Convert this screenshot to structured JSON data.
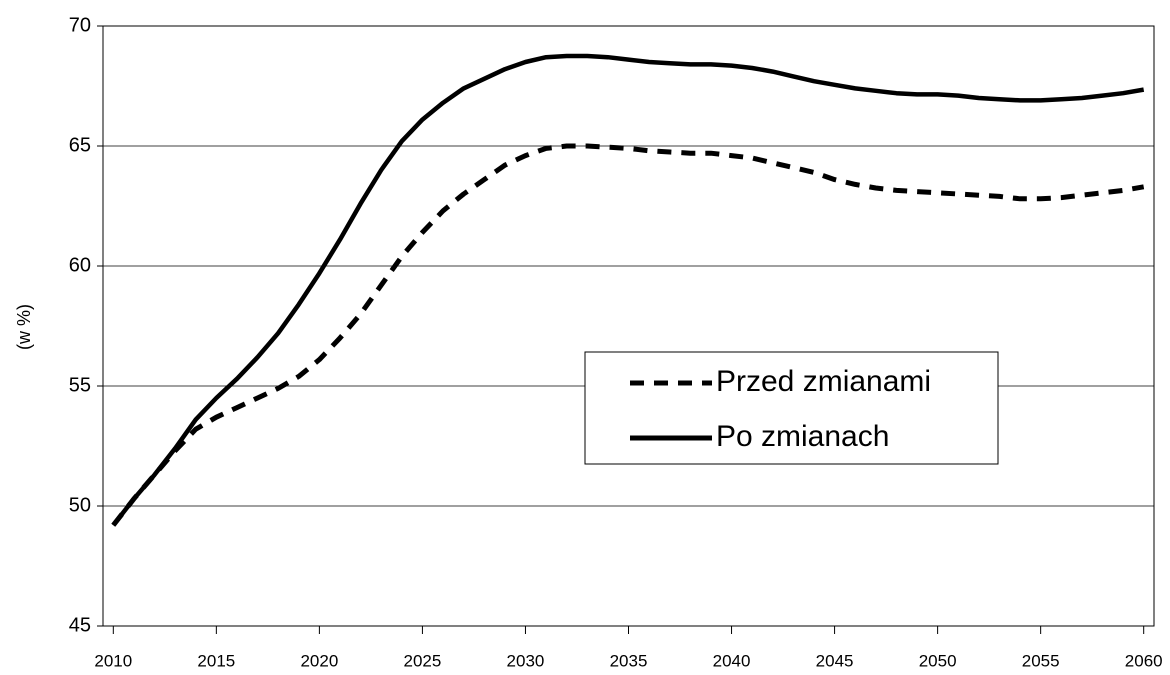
{
  "chart_data": {
    "type": "line",
    "y_label": "(w %)",
    "x": [
      2010,
      2011,
      2012,
      2013,
      2014,
      2015,
      2016,
      2017,
      2018,
      2019,
      2020,
      2021,
      2022,
      2023,
      2024,
      2025,
      2026,
      2027,
      2028,
      2029,
      2030,
      2031,
      2032,
      2033,
      2034,
      2035,
      2036,
      2037,
      2038,
      2039,
      2040,
      2041,
      2042,
      2043,
      2044,
      2045,
      2046,
      2047,
      2048,
      2049,
      2050,
      2051,
      2052,
      2053,
      2054,
      2055,
      2056,
      2057,
      2058,
      2059,
      2060
    ],
    "series": [
      {
        "name": "Przed zmianami",
        "color": "#000000",
        "dash": true,
        "values": [
          49.2,
          50.3,
          51.3,
          52.3,
          53.2,
          53.7,
          54.1,
          54.5,
          54.9,
          55.4,
          56.1,
          57.0,
          58.0,
          59.2,
          60.4,
          61.4,
          62.3,
          63.0,
          63.6,
          64.2,
          64.6,
          64.9,
          65.0,
          65.0,
          64.95,
          64.9,
          64.8,
          64.75,
          64.7,
          64.7,
          64.6,
          64.5,
          64.3,
          64.1,
          63.9,
          63.6,
          63.4,
          63.25,
          63.15,
          63.1,
          63.05,
          63.0,
          62.95,
          62.9,
          62.8,
          62.8,
          62.85,
          62.95,
          63.05,
          63.15,
          63.3
        ]
      },
      {
        "name": "Po zmianach",
        "color": "#000000",
        "dash": false,
        "values": [
          49.2,
          50.3,
          51.3,
          52.4,
          53.6,
          54.5,
          55.3,
          56.2,
          57.2,
          58.4,
          59.7,
          61.1,
          62.6,
          64.0,
          65.2,
          66.1,
          66.8,
          67.4,
          67.8,
          68.2,
          68.5,
          68.7,
          68.75,
          68.75,
          68.7,
          68.6,
          68.5,
          68.45,
          68.4,
          68.4,
          68.35,
          68.25,
          68.1,
          67.9,
          67.7,
          67.55,
          67.4,
          67.3,
          67.2,
          67.15,
          67.15,
          67.1,
          67.0,
          66.95,
          66.9,
          66.9,
          66.95,
          67.0,
          67.1,
          67.2,
          67.35
        ]
      }
    ],
    "xlim": [
      2009.5,
      2060.5
    ],
    "xticks": [
      2010,
      2015,
      2020,
      2025,
      2030,
      2035,
      2040,
      2045,
      2050,
      2055,
      2060
    ],
    "ylim": [
      45,
      70
    ],
    "yticks": [
      45,
      50,
      55,
      60,
      65,
      70
    ],
    "grid": true,
    "legend": "center-right"
  }
}
